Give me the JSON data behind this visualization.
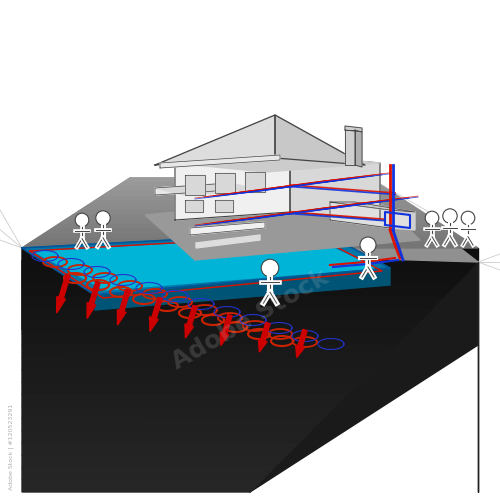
{
  "background_color": "#ffffff",
  "ground_dark": "#111111",
  "ground_mid": "#333333",
  "ground_top": "#888888",
  "water_bright": "#00b4d8",
  "water_mid": "#0077a8",
  "water_dark": "#005577",
  "water_border": "#005599",
  "coil_red": "#cc2200",
  "coil_blue": "#2233cc",
  "pipe_red": "#dd1100",
  "pipe_blue": "#1133dd",
  "arrow_red": "#cc0000",
  "house_light": "#f0f0f0",
  "house_mid": "#d8d8d8",
  "house_dark": "#aaaaaa",
  "house_outline": "#444444",
  "person_fill": "#ffffff",
  "person_outline": "#444444",
  "line_color": "#aaaaaa",
  "watermark": "Adobe Stock | #120523291",
  "figsize": [
    5.0,
    5.0
  ],
  "dpi": 100
}
